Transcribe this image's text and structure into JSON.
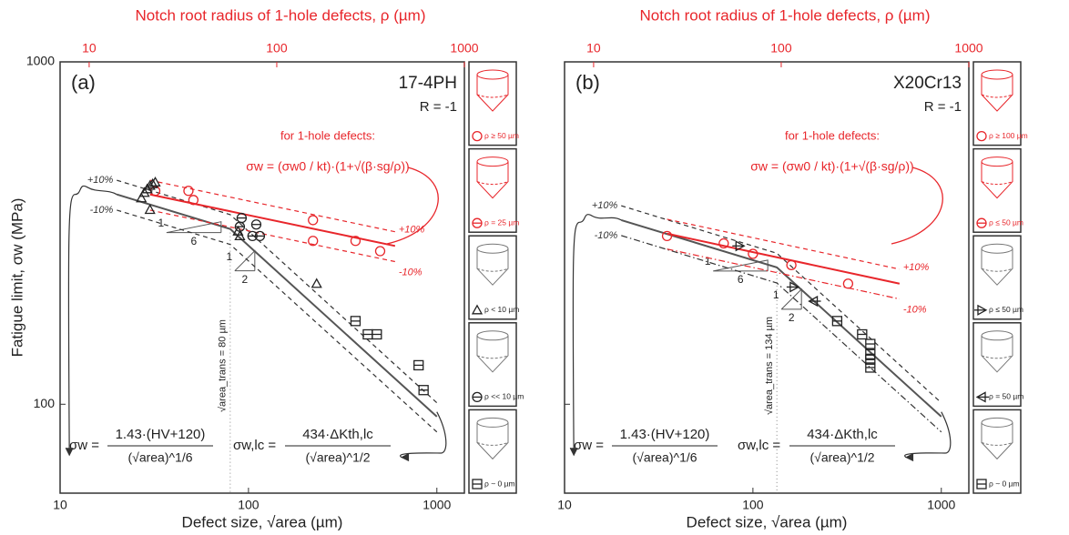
{
  "chart_data": [
    {
      "type": "scatter",
      "log_x": true,
      "log_y": true,
      "panel_label": "(a)",
      "material": "17-4PH",
      "condition": "R = -1",
      "y_label": "Fatigue limit, σw (MPa)",
      "x_label": "Defect size, √area (µm)",
      "x2_label": "Notch root radius of 1-hole defects, ρ (µm)",
      "xlim": [
        10,
        1400
      ],
      "xticks": [
        10,
        100,
        1000
      ],
      "x2lim": [
        7,
        1000
      ],
      "x2ticks": [
        10,
        100,
        1000
      ],
      "ylim": [
        55,
        1000
      ],
      "yticks": [
        100,
        1000
      ],
      "hole_note": "for 1-hole defects:",
      "formula_hole": "σw = (σw0 / kt)·(1+√(β·sg/ρ))",
      "formula_left": {
        "lhs": "σw =",
        "num": "1.43·(HV+120)",
        "den": "(√area)^1/6"
      },
      "formula_right": {
        "lhs": "σw,lc =",
        "num": "434·ΔKth,lc",
        "den": "(√area)^1/2"
      },
      "transition_x": 80,
      "transition_label": "√area_trans = 80 µm",
      "slopes": [
        {
          "rise": "1",
          "run": "6"
        },
        {
          "rise": "1",
          "run": "2"
        }
      ],
      "curves": [
        {
          "x": [
            20,
            80,
            1000
          ],
          "values": [
            410,
            325,
            92
          ],
          "color": "#555555",
          "style": "solid"
        },
        {
          "x": [
            20,
            80,
            1000
          ],
          "values": [
            451,
            358,
            101
          ],
          "color": "#333333",
          "style": "dashed",
          "label": "+10%"
        },
        {
          "x": [
            20,
            80,
            1000
          ],
          "values": [
            369,
            293,
            83
          ],
          "color": "#333333",
          "style": "dashed",
          "label": "-10%"
        },
        {
          "x": [
            11.2,
            11,
            12,
            14,
            20
          ],
          "values": [
            71,
            330,
            410,
            430,
            410
          ],
          "color": "#333333",
          "style": "arrow"
        },
        {
          "x": [
            1000,
            1150,
            1050,
            650
          ],
          "values": [
            95,
            82,
            72,
            70
          ],
          "color": "#333333",
          "style": "arrow"
        },
        {
          "x": [
            30,
            600
          ],
          "values": [
            410,
            290
          ],
          "color": "#e8262b",
          "style": "solid"
        },
        {
          "x": [
            30,
            600
          ],
          "values": [
            451,
            319
          ],
          "color": "#e8262b",
          "style": "dashed",
          "label": "+10%"
        },
        {
          "x": [
            30,
            600
          ],
          "values": [
            369,
            261
          ],
          "color": "#e8262b",
          "style": "dashed",
          "label": "-10%"
        }
      ],
      "series": [
        {
          "marker": "circle",
          "color": "#e8262b",
          "x": [
            32,
            48,
            51,
            220,
            220,
            370,
            500
          ],
          "values": [
            420,
            420,
            395,
            345,
            300,
            300,
            280
          ]
        },
        {
          "marker": "triangle",
          "color": "#222222",
          "x": [
            27,
            28,
            29,
            30,
            31,
            32,
            30,
            88,
            90,
            230
          ],
          "values": [
            400,
            415,
            425,
            435,
            440,
            445,
            370,
            320,
            310,
            225
          ]
        },
        {
          "marker": "theta",
          "color": "#222222",
          "x": [
            90,
            92,
            105,
            110,
            115
          ],
          "values": [
            330,
            350,
            310,
            335,
            310
          ]
        },
        {
          "marker": "square",
          "color": "#222222",
          "x": [
            370,
            430,
            480,
            800,
            850
          ],
          "values": [
            175,
            160,
            160,
            130,
            110
          ]
        }
      ],
      "legend": [
        {
          "label": "ρ ≥ 50 µm",
          "marker": "circle",
          "color": "#e8262b"
        },
        {
          "label": "ρ = 25 µm",
          "marker": "theta",
          "color": "#e8262b"
        },
        {
          "label": "ρ < 10 µm",
          "marker": "triangle",
          "color": "#222222"
        },
        {
          "label": "ρ << 10 µm",
          "marker": "theta",
          "color": "#222222"
        },
        {
          "label": "ρ ~ 0 µm",
          "marker": "square",
          "color": "#222222"
        }
      ]
    },
    {
      "type": "scatter",
      "log_x": true,
      "log_y": true,
      "panel_label": "(b)",
      "material": "X20Cr13",
      "condition": "R = -1",
      "y_label": null,
      "x_label": "Defect size, √area (µm)",
      "x2_label": "Notch root radius of 1-hole defects, ρ (µm)",
      "xlim": [
        10,
        1400
      ],
      "xticks": [
        10,
        100,
        1000
      ],
      "x2lim": [
        7,
        1000
      ],
      "x2ticks": [
        10,
        100,
        1000
      ],
      "ylim": [
        55,
        1000
      ],
      "yticks": [
        100,
        1000
      ],
      "hole_note": "for 1-hole defects:",
      "formula_hole": "σw = (σw0 / kt)·(1+√(β·sg/ρ))",
      "formula_left": {
        "lhs": "σw =",
        "num": "1.43·(HV+120)",
        "den": "(√area)^1/6"
      },
      "formula_right": {
        "lhs": "σw,lc =",
        "num": "434·ΔKth,lc",
        "den": "(√area)^1/2"
      },
      "transition_x": 134,
      "transition_label": "√area_trans = 134 µm",
      "slopes": [
        {
          "rise": "1",
          "run": "6"
        },
        {
          "rise": "1",
          "run": "2"
        }
      ],
      "curves": [
        {
          "x": [
            20,
            134,
            1000
          ],
          "values": [
            345,
            251,
            92
          ],
          "color": "#555555",
          "style": "solid"
        },
        {
          "x": [
            20,
            134,
            1000
          ],
          "values": [
            380,
            276,
            101
          ],
          "color": "#333333",
          "style": "dashed",
          "label": "+10%"
        },
        {
          "x": [
            20,
            134,
            1000
          ],
          "values": [
            311,
            226,
            83
          ],
          "color": "#333333",
          "style": "dashdot",
          "label": "-10%"
        },
        {
          "x": [
            11.2,
            11,
            12,
            14,
            20
          ],
          "values": [
            71,
            280,
            340,
            355,
            345
          ],
          "color": "#333333",
          "style": "arrow"
        },
        {
          "x": [
            1000,
            1150,
            1050,
            650
          ],
          "values": [
            95,
            82,
            72,
            70
          ],
          "color": "#333333",
          "style": "arrow"
        },
        {
          "x": [
            35,
            600
          ],
          "values": [
            315,
            225
          ],
          "color": "#e8262b",
          "style": "solid"
        },
        {
          "x": [
            35,
            600
          ],
          "values": [
            347,
            248
          ],
          "color": "#e8262b",
          "style": "dashed",
          "label": "+10%"
        },
        {
          "x": [
            35,
            600
          ],
          "values": [
            284,
            203
          ],
          "color": "#e8262b",
          "style": "dashdot",
          "label": "-10%"
        }
      ],
      "series": [
        {
          "marker": "circle",
          "color": "#e8262b",
          "x": [
            35,
            70,
            100,
            160,
            320
          ],
          "values": [
            310,
            295,
            275,
            255,
            225
          ]
        },
        {
          "marker": "triright",
          "color": "#222222",
          "x": [
            85,
            165
          ],
          "values": [
            290,
            220
          ]
        },
        {
          "marker": "trileft",
          "color": "#222222",
          "x": [
            210
          ],
          "values": [
            200
          ]
        },
        {
          "marker": "square",
          "color": "#222222",
          "x": [
            280,
            380,
            420,
            420,
            420,
            420
          ],
          "values": [
            175,
            160,
            150,
            140,
            135,
            128
          ]
        }
      ],
      "legend": [
        {
          "label": "ρ ≥ 100 µm",
          "marker": "circle",
          "color": "#e8262b"
        },
        {
          "label": "ρ ≤ 50 µm",
          "marker": "theta",
          "color": "#e8262b"
        },
        {
          "label": "ρ ≤ 50 µm",
          "marker": "triright",
          "color": "#222222"
        },
        {
          "label": "ρ = 50 µm",
          "marker": "trileft",
          "color": "#222222"
        },
        {
          "label": "ρ ~ 0 µm",
          "marker": "square",
          "color": "#222222"
        }
      ]
    }
  ]
}
